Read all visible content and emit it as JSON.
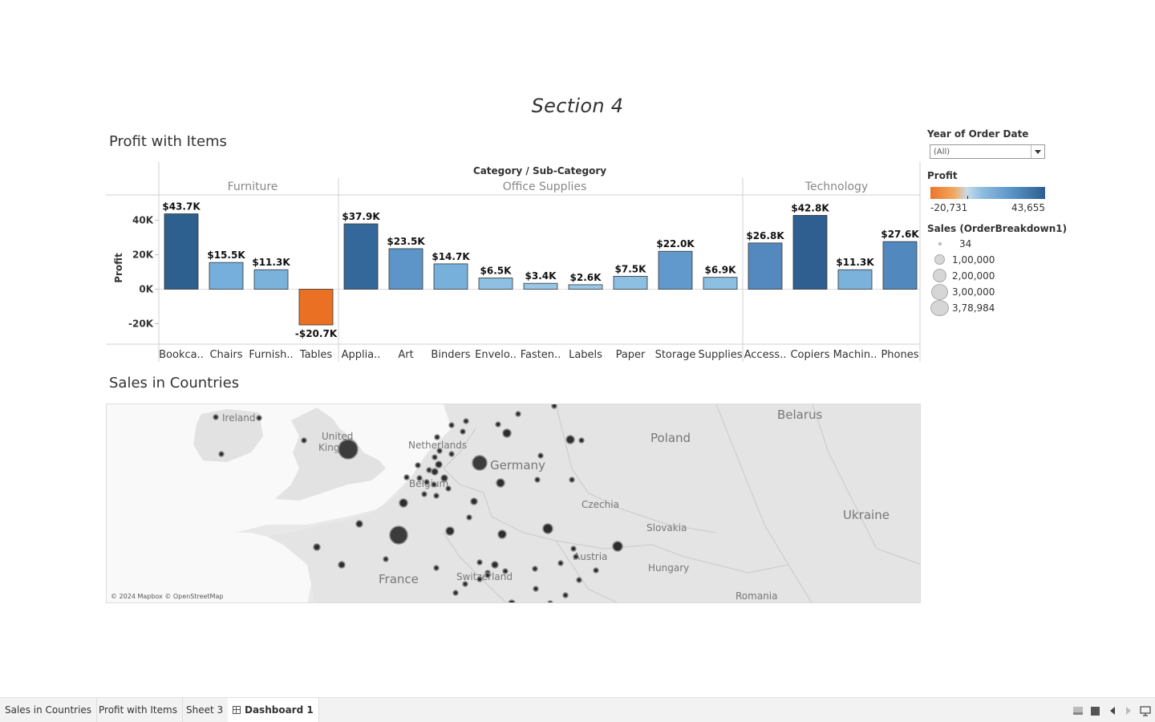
{
  "dashboard": {
    "title": "Section 4"
  },
  "profit_sheet": {
    "title": "Profit with Items",
    "header": "Category / Sub-Category",
    "y_axis_title": "Profit",
    "y_ticks": [
      "40K",
      "20K",
      "0K",
      "-20K"
    ],
    "categories": [
      {
        "name": "Furniture",
        "items": [
          {
            "label": "Bookca..",
            "value": 43.7,
            "value_label": "$43.7K",
            "color": "#2d5f8f"
          },
          {
            "label": "Chairs",
            "value": 15.5,
            "value_label": "$15.5K",
            "color": "#76afdb"
          },
          {
            "label": "Furnish..",
            "value": 11.3,
            "value_label": "$11.3K",
            "color": "#7ab2dc"
          },
          {
            "label": "Tables",
            "value": -20.7,
            "value_label": "-$20.7K",
            "color": "#ea7024"
          }
        ]
      },
      {
        "name": "Office Supplies",
        "items": [
          {
            "label": "Applia..",
            "value": 37.9,
            "value_label": "$37.9K",
            "color": "#34689a"
          },
          {
            "label": "Art",
            "value": 23.5,
            "value_label": "$23.5K",
            "color": "#5e95c8"
          },
          {
            "label": "Binders",
            "value": 14.7,
            "value_label": "$14.7K",
            "color": "#77b0da"
          },
          {
            "label": "Envelo..",
            "value": 6.5,
            "value_label": "$6.5K",
            "color": "#8ec0e3"
          },
          {
            "label": "Fasten..",
            "value": 3.4,
            "value_label": "$3.4K",
            "color": "#97c6e6"
          },
          {
            "label": "Labels",
            "value": 2.6,
            "value_label": "$2.6K",
            "color": "#99c7e7"
          },
          {
            "label": "Paper",
            "value": 7.5,
            "value_label": "$7.5K",
            "color": "#8cbfe2"
          },
          {
            "label": "Storage",
            "value": 22.0,
            "value_label": "$22.0K",
            "color": "#6199cc"
          },
          {
            "label": "Supplies",
            "value": 6.9,
            "value_label": "$6.9K",
            "color": "#8dbfe3"
          }
        ]
      },
      {
        "name": "Technology",
        "items": [
          {
            "label": "Access..",
            "value": 26.8,
            "value_label": "$26.8K",
            "color": "#5389bf"
          },
          {
            "label": "Copiers",
            "value": 42.8,
            "value_label": "$42.8K",
            "color": "#2e5f90"
          },
          {
            "label": "Machin..",
            "value": 11.3,
            "value_label": "$11.3K",
            "color": "#7ab2dc"
          },
          {
            "label": "Phones",
            "value": 27.6,
            "value_label": "$27.6K",
            "color": "#5188bd"
          }
        ]
      }
    ]
  },
  "chart_data": {
    "type": "bar",
    "title": "Profit with Items",
    "xlabel": "Category / Sub-Category",
    "ylabel": "Profit",
    "ylim": [
      -30,
      50
    ],
    "categories": [
      "Bookca..",
      "Chairs",
      "Furnish..",
      "Tables",
      "Applia..",
      "Art",
      "Binders",
      "Envelo..",
      "Fasten..",
      "Labels",
      "Paper",
      "Storage",
      "Supplies",
      "Access..",
      "Copiers",
      "Machin..",
      "Phones"
    ],
    "groups": [
      "Furniture",
      "Office Supplies",
      "Technology"
    ],
    "values": [
      43.7,
      15.5,
      11.3,
      -20.7,
      37.9,
      23.5,
      14.7,
      6.5,
      3.4,
      2.6,
      7.5,
      22.0,
      6.9,
      26.8,
      42.8,
      11.3,
      27.6
    ],
    "grid": false
  },
  "filters": {
    "label": "Year of Order Date",
    "value": "(All)"
  },
  "profit_legend": {
    "title": "Profit",
    "min": "-20,731",
    "max": "43,655"
  },
  "size_legend": {
    "title": "Sales (OrderBreakdown1)",
    "items": [
      "34",
      "1,00,000",
      "2,00,000",
      "3,00,000",
      "3,78,984"
    ]
  },
  "map": {
    "title": "Sales in Countries",
    "attribution": "© 2024 Mapbox © OpenStreetMap",
    "labels": [
      "Ireland",
      "United",
      "King",
      "Netherlands",
      "Belgium",
      "Germany",
      "Poland",
      "Belarus",
      "Czechia",
      "Slovakia",
      "Ukraine",
      "Austria",
      "Hungary",
      "France",
      "Switzerland",
      "Romania"
    ]
  },
  "tabs": [
    "Sales in Countries",
    "Profit with Items",
    "Sheet 3",
    "Dashboard 1"
  ]
}
